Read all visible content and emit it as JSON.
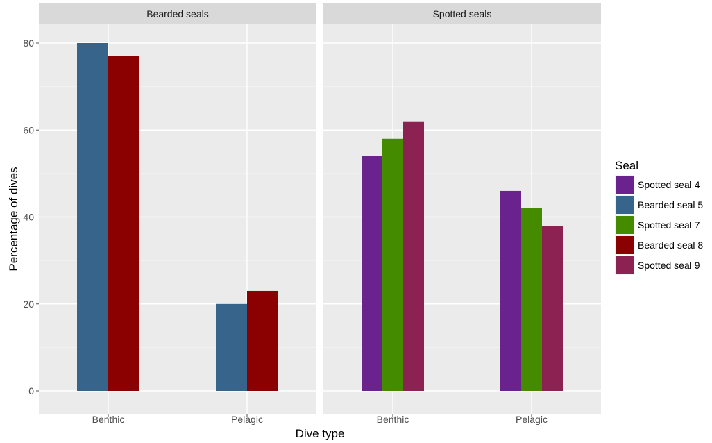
{
  "chart_data": {
    "type": "bar",
    "xlabel": "Dive type",
    "ylabel": "Percentage of dives",
    "ylim": [
      0,
      83
    ],
    "y_ticks": [
      0,
      20,
      40,
      60,
      80
    ],
    "categories": [
      "Benthic",
      "Pelagic"
    ],
    "grid": true,
    "legend": {
      "title": "Seal",
      "position": "right",
      "entries": [
        {
          "name": "Spotted seal 4",
          "color": "#6A228E"
        },
        {
          "name": "Bearded seal 5",
          "color": "#36648B"
        },
        {
          "name": "Spotted seal 7",
          "color": "#458B00"
        },
        {
          "name": "Bearded seal 8",
          "color": "#8B0000"
        },
        {
          "name": "Spotted seal 9",
          "color": "#8B2252"
        }
      ]
    },
    "panels": [
      {
        "strip": "Bearded seals",
        "series": [
          {
            "name": "Bearded seal 5",
            "color": "#36648B",
            "values": [
              80,
              20
            ]
          },
          {
            "name": "Bearded seal 8",
            "color": "#8B0000",
            "values": [
              77,
              23
            ]
          }
        ]
      },
      {
        "strip": "Spotted seals",
        "series": [
          {
            "name": "Spotted seal 4",
            "color": "#6A228E",
            "values": [
              54,
              46
            ]
          },
          {
            "name": "Spotted seal 7",
            "color": "#458B00",
            "values": [
              58,
              42
            ]
          },
          {
            "name": "Spotted seal 9",
            "color": "#8B2252",
            "values": [
              62,
              38
            ]
          }
        ]
      }
    ]
  }
}
